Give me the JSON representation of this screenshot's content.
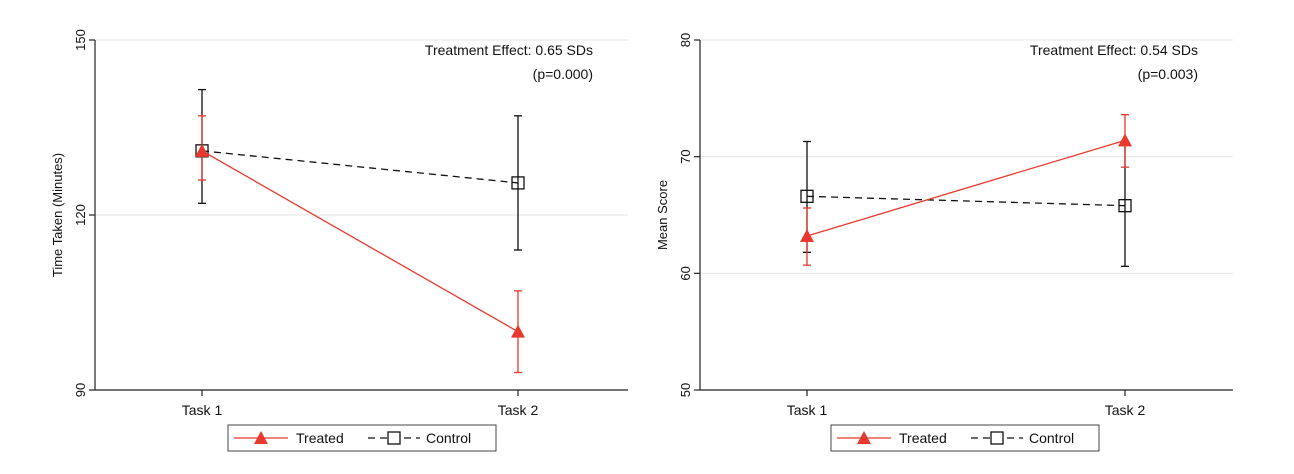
{
  "colors": {
    "treated": "#e8392e",
    "control": "#111111",
    "grid": "#e6e6e6",
    "axis": "#222222"
  },
  "chart_data": [
    {
      "type": "line",
      "ylabel": "Time Taken (Minutes)",
      "xlabel": "",
      "categories": [
        "Task 1",
        "Task 2"
      ],
      "ylim": [
        90,
        150
      ],
      "yticks": [
        90,
        120,
        150
      ],
      "grid": true,
      "annotation": {
        "line1": "Treatment Effect: 0.65 SDs",
        "line2": "(p=0.000)"
      },
      "legend": {
        "position": "bottom"
      },
      "series": [
        {
          "name": "Treated",
          "marker": "triangle",
          "style": "solid",
          "color": "#e8392e",
          "values": [
            131,
            100
          ],
          "ci_low": [
            126,
            93
          ],
          "ci_high": [
            137,
            107
          ]
        },
        {
          "name": "Control",
          "marker": "square",
          "style": "dashed",
          "color": "#111111",
          "values": [
            131,
            125.5
          ],
          "ci_low": [
            122,
            114
          ],
          "ci_high": [
            141.5,
            137
          ]
        }
      ]
    },
    {
      "type": "line",
      "ylabel": "Mean Score",
      "xlabel": "",
      "categories": [
        "Task 1",
        "Task 2"
      ],
      "ylim": [
        50,
        80
      ],
      "yticks": [
        50,
        60,
        70,
        80
      ],
      "grid": true,
      "annotation": {
        "line1": "Treatment Effect: 0.54 SDs",
        "line2": "(p=0.003)"
      },
      "legend": {
        "position": "bottom"
      },
      "series": [
        {
          "name": "Treated",
          "marker": "triangle",
          "style": "solid",
          "color": "#e8392e",
          "values": [
            63.2,
            71.4
          ],
          "ci_low": [
            60.7,
            69.1
          ],
          "ci_high": [
            65.6,
            73.6
          ]
        },
        {
          "name": "Control",
          "marker": "square",
          "style": "dashed",
          "color": "#111111",
          "values": [
            66.6,
            65.8
          ],
          "ci_low": [
            61.8,
            60.6
          ],
          "ci_high": [
            71.3,
            71.1
          ]
        }
      ]
    }
  ]
}
